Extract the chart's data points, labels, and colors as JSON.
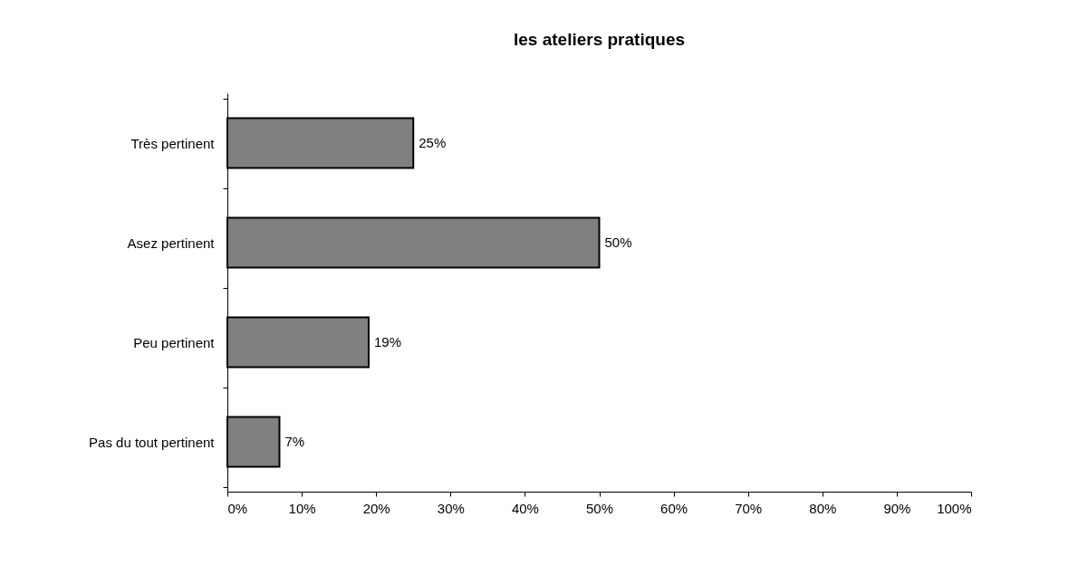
{
  "chart_data": {
    "type": "bar",
    "orientation": "horizontal",
    "title": "les ateliers pratiques",
    "categories": [
      "Très pertinent",
      "Asez pertinent",
      "Peu pertinent",
      "Pas du tout pertinent"
    ],
    "values": [
      25,
      50,
      19,
      7
    ],
    "value_labels": [
      "25%",
      "50%",
      "19%",
      "7%"
    ],
    "color": "#808080",
    "xlim": [
      0,
      100
    ],
    "xticks": [
      {
        "value": 0,
        "label": "0%"
      },
      {
        "value": 10,
        "label": "10%"
      },
      {
        "value": 20,
        "label": "20%"
      },
      {
        "value": 30,
        "label": "30%"
      },
      {
        "value": 40,
        "label": "40%"
      },
      {
        "value": 50,
        "label": "50%"
      },
      {
        "value": 60,
        "label": "60%"
      },
      {
        "value": 70,
        "label": "70%"
      },
      {
        "value": 80,
        "label": "80%"
      },
      {
        "value": 90,
        "label": "90%"
      },
      {
        "value": 100,
        "label": "100%"
      }
    ],
    "grid": false
  }
}
